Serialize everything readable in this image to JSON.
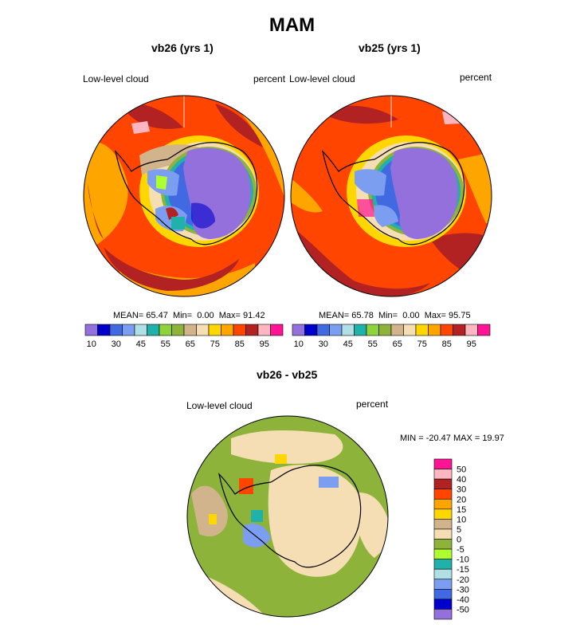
{
  "title": "MAM",
  "panels": [
    {
      "id": "vb26",
      "title": "vb26 (yrs 1)",
      "left_label": "Low-level cloud",
      "right_label": "percent",
      "stats": {
        "mean_label": "MEAN=",
        "mean": "65.47",
        "min_label": "Min=",
        "min": "0.00",
        "max_label": "Max=",
        "max": "91.42"
      }
    },
    {
      "id": "vb25",
      "title": "vb25 (yrs 1)",
      "left_label": "Low-level cloud",
      "right_label": "percent",
      "stats": {
        "mean_label": "MEAN=",
        "mean": "65.78",
        "min_label": "Min=",
        "min": "0.00",
        "max_label": "Max=",
        "max": "95.75"
      }
    }
  ],
  "colorbar_top": {
    "colors": [
      "#9370db",
      "#0000cd",
      "#4169e1",
      "#7b9ef0",
      "#b0e0e6",
      "#20b2aa",
      "#8fd33c",
      "#8db33a",
      "#d2b48c",
      "#f5deb3",
      "#ffd700",
      "#ffa500",
      "#ff4500",
      "#b22222",
      "#ffb6c1",
      "#ff1493"
    ],
    "tick_labels": [
      "10",
      "30",
      "45",
      "55",
      "65",
      "75",
      "85",
      "95"
    ]
  },
  "diff": {
    "title": "vb26 - vb25",
    "left_label": "Low-level cloud",
    "right_label": "percent",
    "minmax": "MIN = -20.47 MAX =  19.97"
  },
  "colorbar_diff": {
    "colors": [
      "#ff1493",
      "#ffb6c1",
      "#b22222",
      "#ff4500",
      "#ffa500",
      "#ffd700",
      "#d2b48c",
      "#f5deb3",
      "#8db33a",
      "#adff2f",
      "#20b2aa",
      "#b0e0e6",
      "#7b9ef0",
      "#4169e1",
      "#0000cd",
      "#9370db"
    ],
    "tick_labels": [
      "50",
      "40",
      "30",
      "20",
      "15",
      "10",
      "5",
      "0",
      "-5",
      "-10",
      "-15",
      "-20",
      "-30",
      "-40",
      "-50"
    ]
  }
}
